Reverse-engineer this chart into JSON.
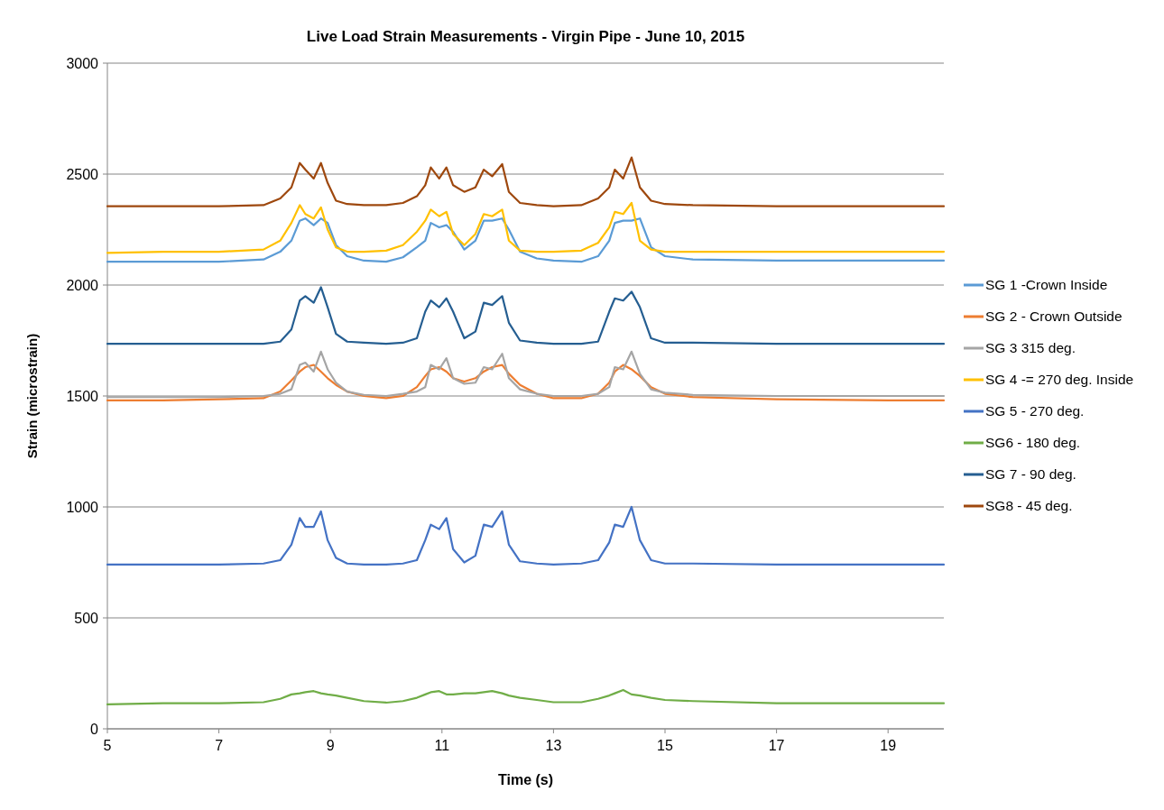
{
  "chart_data": {
    "type": "line",
    "title": "Live Load Strain Measurements - Virgin Pipe - June 10, 2015",
    "xlabel": "Time (s)",
    "ylabel": "Strain (microstrain)",
    "x": [
      5,
      6,
      7,
      7.8,
      8.1,
      8.3,
      8.45,
      8.55,
      8.7,
      8.83,
      8.95,
      9.1,
      9.3,
      9.6,
      10,
      10.3,
      10.55,
      10.7,
      10.8,
      10.95,
      11.08,
      11.2,
      11.4,
      11.6,
      11.75,
      11.9,
      12.08,
      12.2,
      12.4,
      12.7,
      13,
      13.5,
      13.8,
      14.0,
      14.1,
      14.25,
      14.4,
      14.55,
      14.75,
      15,
      15.5,
      17,
      19,
      20
    ],
    "xlim": [
      5,
      20
    ],
    "xticks": [
      5,
      7,
      9,
      11,
      13,
      15,
      17,
      19
    ],
    "ylim": [
      0,
      3000
    ],
    "yticks": [
      0,
      500,
      1000,
      1500,
      2000,
      2500,
      3000
    ],
    "grid": "y",
    "legend": "right",
    "marker": "none",
    "line_style": "solid",
    "series": [
      {
        "name": "SG 1 -Crown Inside",
        "color": "#5b9bd5",
        "values": [
          2105,
          2105,
          2105,
          2115,
          2150,
          2200,
          2290,
          2300,
          2270,
          2300,
          2280,
          2180,
          2130,
          2110,
          2105,
          2125,
          2170,
          2200,
          2280,
          2260,
          2270,
          2240,
          2160,
          2200,
          2290,
          2290,
          2300,
          2250,
          2150,
          2120,
          2110,
          2105,
          2130,
          2200,
          2280,
          2290,
          2290,
          2300,
          2170,
          2130,
          2115,
          2110,
          2110,
          2110
        ]
      },
      {
        "name": "SG 2 - Crown Outside",
        "color": "#ed7d31",
        "values": [
          1480,
          1480,
          1485,
          1490,
          1520,
          1570,
          1610,
          1630,
          1640,
          1610,
          1580,
          1550,
          1520,
          1500,
          1490,
          1500,
          1540,
          1590,
          1620,
          1630,
          1610,
          1580,
          1565,
          1580,
          1610,
          1630,
          1640,
          1600,
          1550,
          1510,
          1490,
          1490,
          1510,
          1560,
          1610,
          1640,
          1620,
          1590,
          1540,
          1510,
          1495,
          1485,
          1480,
          1480
        ]
      },
      {
        "name": "SG 3 315 deg.",
        "color": "#a5a5a5",
        "values": [
          1495,
          1495,
          1495,
          1500,
          1510,
          1530,
          1640,
          1650,
          1610,
          1700,
          1620,
          1560,
          1520,
          1505,
          1500,
          1510,
          1520,
          1540,
          1640,
          1620,
          1670,
          1580,
          1555,
          1560,
          1630,
          1620,
          1690,
          1580,
          1530,
          1510,
          1500,
          1500,
          1510,
          1540,
          1630,
          1620,
          1700,
          1600,
          1530,
          1515,
          1505,
          1500,
          1500,
          1500
        ]
      },
      {
        "name": "SG 4 -= 270 deg. Inside",
        "color": "#ffc000",
        "values": [
          2145,
          2150,
          2150,
          2160,
          2200,
          2280,
          2360,
          2320,
          2300,
          2350,
          2250,
          2170,
          2150,
          2150,
          2155,
          2180,
          2240,
          2290,
          2340,
          2310,
          2330,
          2230,
          2180,
          2230,
          2320,
          2310,
          2340,
          2200,
          2155,
          2150,
          2150,
          2155,
          2190,
          2260,
          2330,
          2320,
          2370,
          2200,
          2160,
          2150,
          2150,
          2150,
          2150,
          2150
        ]
      },
      {
        "name": "SG 5 - 270 deg.",
        "color": "#4472c4",
        "values": [
          740,
          740,
          740,
          745,
          760,
          830,
          950,
          910,
          910,
          980,
          850,
          770,
          745,
          740,
          740,
          745,
          760,
          850,
          920,
          900,
          950,
          810,
          750,
          780,
          920,
          910,
          980,
          830,
          755,
          745,
          740,
          745,
          760,
          840,
          920,
          910,
          1000,
          850,
          760,
          745,
          745,
          740,
          740,
          740
        ]
      },
      {
        "name": "SG6 - 180 deg.",
        "color": "#70ad47",
        "values": [
          110,
          115,
          115,
          120,
          135,
          155,
          160,
          165,
          170,
          160,
          155,
          150,
          140,
          125,
          118,
          125,
          140,
          155,
          165,
          170,
          155,
          155,
          160,
          160,
          165,
          170,
          160,
          150,
          140,
          130,
          120,
          120,
          135,
          150,
          160,
          175,
          155,
          150,
          140,
          130,
          125,
          115,
          115,
          115
        ]
      },
      {
        "name": "SG 7 - 90 deg.",
        "color": "#255e91",
        "values": [
          1735,
          1735,
          1735,
          1735,
          1745,
          1800,
          1930,
          1950,
          1920,
          1990,
          1900,
          1780,
          1745,
          1740,
          1735,
          1740,
          1760,
          1880,
          1930,
          1900,
          1940,
          1880,
          1760,
          1790,
          1920,
          1910,
          1950,
          1830,
          1750,
          1740,
          1735,
          1735,
          1745,
          1880,
          1940,
          1930,
          1970,
          1900,
          1760,
          1740,
          1740,
          1735,
          1735,
          1735
        ]
      },
      {
        "name": "SG8 - 45 deg.",
        "color": "#9e480e",
        "values": [
          2355,
          2355,
          2355,
          2360,
          2390,
          2440,
          2550,
          2520,
          2480,
          2550,
          2460,
          2380,
          2365,
          2360,
          2360,
          2370,
          2400,
          2450,
          2530,
          2480,
          2530,
          2450,
          2420,
          2440,
          2520,
          2490,
          2545,
          2420,
          2370,
          2360,
          2355,
          2360,
          2390,
          2440,
          2520,
          2480,
          2575,
          2440,
          2380,
          2365,
          2360,
          2355,
          2355,
          2355
        ]
      }
    ]
  }
}
